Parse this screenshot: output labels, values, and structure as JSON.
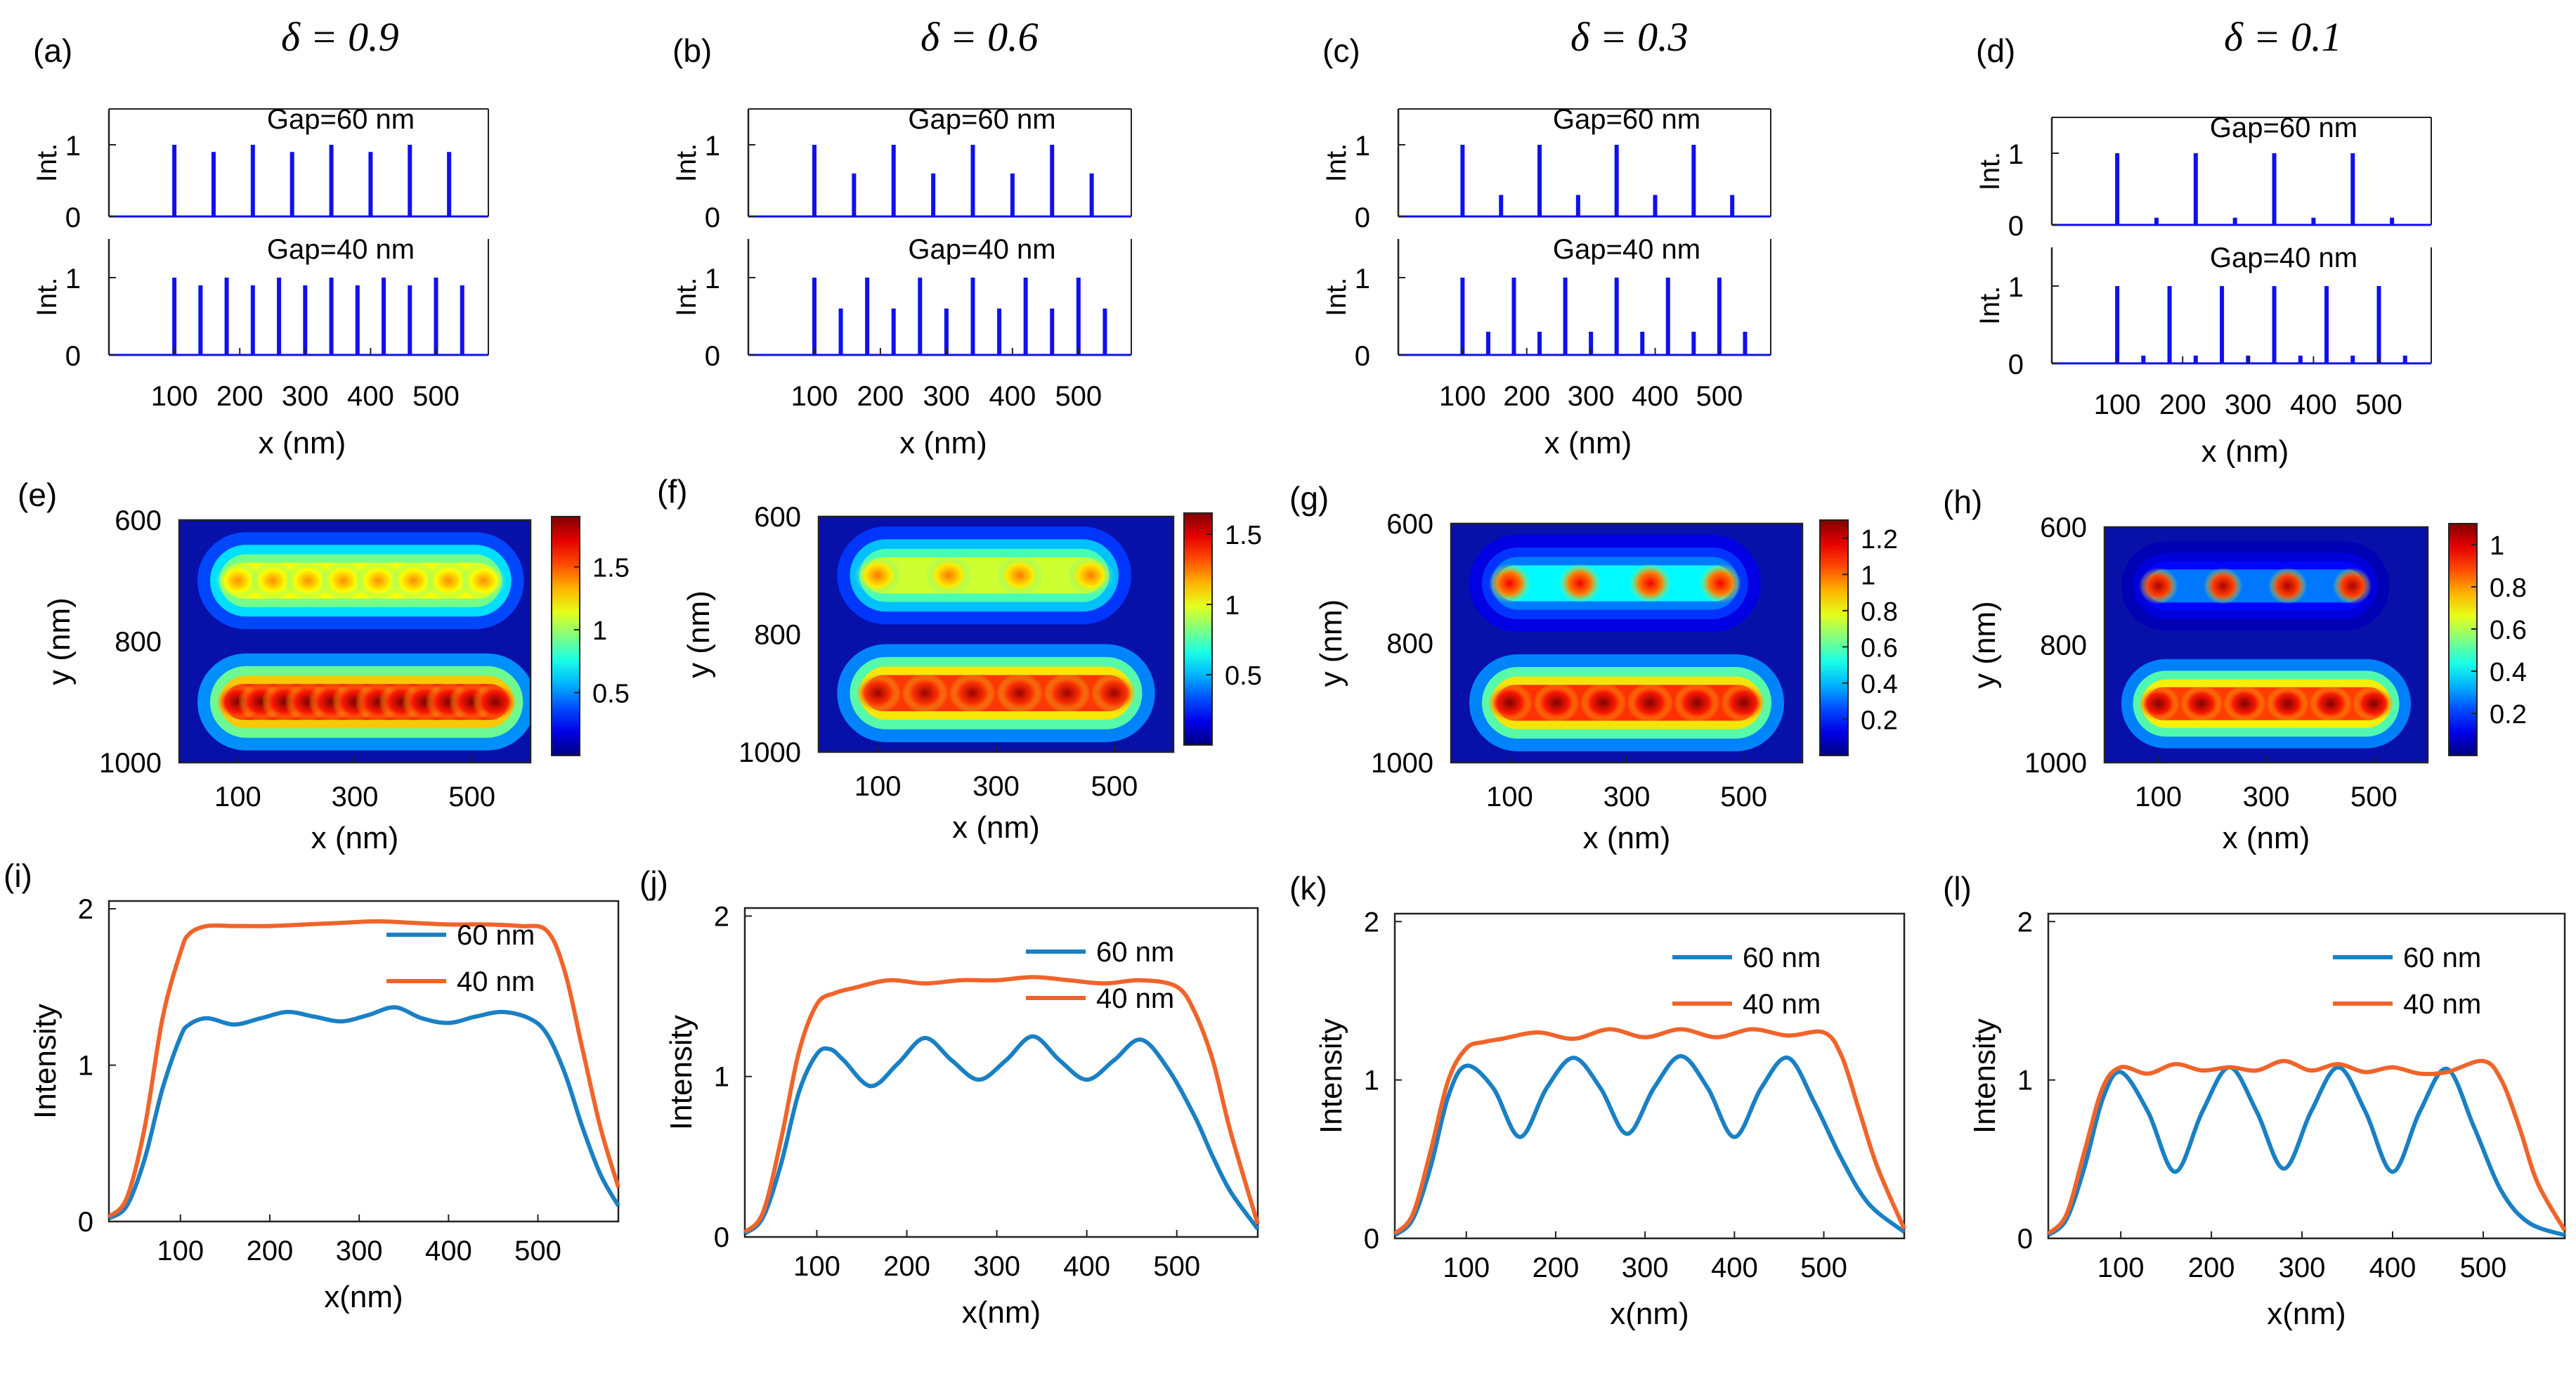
{
  "colors": {
    "stick": "#1010ee",
    "series60": "#1a80c4",
    "series40": "#f0642a",
    "axis": "#222222"
  },
  "delta_symbol": "δ",
  "chart_data": [
    {
      "panel": "a",
      "type": "bar",
      "title": "δ = 0.9",
      "label": "(a)",
      "xlabel": "x (nm)",
      "ylabel": "Int.",
      "xlim": [
        0,
        580
      ],
      "ylim": [
        0,
        1.5
      ],
      "xticks": [
        100,
        200,
        300,
        400,
        500
      ],
      "yticks": [
        0,
        1
      ],
      "subplots": [
        {
          "annotation": "Gap=60 nm",
          "x": [
            100,
            160,
            220,
            280,
            340,
            400,
            460,
            520
          ],
          "values": [
            1,
            0.9,
            1,
            0.9,
            1,
            0.9,
            1,
            0.9
          ]
        },
        {
          "annotation": "Gap=40 nm",
          "x": [
            100,
            140,
            180,
            220,
            260,
            300,
            340,
            380,
            420,
            460,
            500,
            540
          ],
          "values": [
            1,
            0.9,
            1,
            0.9,
            1,
            0.9,
            1,
            0.9,
            1,
            0.9,
            1,
            0.9
          ]
        }
      ]
    },
    {
      "panel": "b",
      "type": "bar",
      "title": "δ = 0.6",
      "label": "(b)",
      "xlabel": "x (nm)",
      "ylabel": "Int.",
      "xlim": [
        0,
        580
      ],
      "ylim": [
        0,
        1.5
      ],
      "xticks": [
        100,
        200,
        300,
        400,
        500
      ],
      "yticks": [
        0,
        1
      ],
      "subplots": [
        {
          "annotation": "Gap=60 nm",
          "x": [
            100,
            160,
            220,
            280,
            340,
            400,
            460,
            520
          ],
          "values": [
            1,
            0.6,
            1,
            0.6,
            1,
            0.6,
            1,
            0.6
          ]
        },
        {
          "annotation": "Gap=40 nm",
          "x": [
            100,
            140,
            180,
            220,
            260,
            300,
            340,
            380,
            420,
            460,
            500,
            540
          ],
          "values": [
            1,
            0.6,
            1,
            0.6,
            1,
            0.6,
            1,
            0.6,
            1,
            0.6,
            1,
            0.6
          ]
        }
      ]
    },
    {
      "panel": "c",
      "type": "bar",
      "title": "δ = 0.3",
      "label": "(c)",
      "xlabel": "x (nm)",
      "ylabel": "Int.",
      "xlim": [
        0,
        580
      ],
      "ylim": [
        0,
        1.5
      ],
      "xticks": [
        100,
        200,
        300,
        400,
        500
      ],
      "yticks": [
        0,
        1
      ],
      "subplots": [
        {
          "annotation": "Gap=60 nm",
          "x": [
            100,
            160,
            220,
            280,
            340,
            400,
            460,
            520
          ],
          "values": [
            1,
            0.3,
            1,
            0.3,
            1,
            0.3,
            1,
            0.3
          ]
        },
        {
          "annotation": "Gap=40 nm",
          "x": [
            100,
            140,
            180,
            220,
            260,
            300,
            340,
            380,
            420,
            460,
            500,
            540
          ],
          "values": [
            1,
            0.3,
            1,
            0.3,
            1,
            0.3,
            1,
            0.3,
            1,
            0.3,
            1,
            0.3
          ]
        }
      ]
    },
    {
      "panel": "d",
      "type": "bar",
      "title": "δ = 0.1",
      "label": "(d)",
      "xlabel": "x (nm)",
      "ylabel": "Int.",
      "xlim": [
        0,
        580
      ],
      "ylim": [
        0,
        1.5
      ],
      "xticks": [
        100,
        200,
        300,
        400,
        500
      ],
      "yticks": [
        0,
        1
      ],
      "subplots": [
        {
          "annotation": "Gap=60 nm",
          "x": [
            100,
            160,
            220,
            280,
            340,
            400,
            460,
            520
          ],
          "values": [
            1,
            0.1,
            1,
            0.1,
            1,
            0.1,
            1,
            0.1
          ]
        },
        {
          "annotation": "Gap=40 nm",
          "x": [
            100,
            140,
            180,
            220,
            260,
            300,
            340,
            380,
            420,
            460,
            500,
            540
          ],
          "values": [
            1,
            0.1,
            1,
            0.1,
            1,
            0.1,
            1,
            0.1,
            1,
            0.1,
            1,
            0.1
          ]
        }
      ]
    },
    {
      "panel": "e",
      "type": "heatmap",
      "label": "(e)",
      "xlabel": "x (nm)",
      "ylabel": "y (nm)",
      "xlim": [
        0,
        600
      ],
      "ylim": [
        600,
        1000
      ],
      "xticks": [
        100,
        300,
        500
      ],
      "yticks": [
        600,
        800,
        1000
      ],
      "colorbar_ticks": [
        0.5,
        1,
        1.5
      ],
      "colorbar_ticklabels": [
        "0.5",
        "1",
        "1.5"
      ],
      "colorbar_range": [
        0,
        1.9
      ],
      "rows": [
        {
          "y": 700,
          "peaks": [
            100,
            160,
            220,
            280,
            340,
            400,
            460,
            520
          ],
          "intensity": 1.4,
          "modulation": 0.05
        },
        {
          "y": 900,
          "peaks": [
            100,
            140,
            180,
            220,
            260,
            300,
            340,
            380,
            420,
            460,
            500,
            540
          ],
          "intensity": 1.9,
          "modulation": 0.03
        }
      ]
    },
    {
      "panel": "f",
      "type": "heatmap",
      "label": "(f)",
      "xlabel": "x (nm)",
      "ylabel": "y (nm)",
      "xlim": [
        0,
        600
      ],
      "ylim": [
        600,
        1000
      ],
      "xticks": [
        100,
        300,
        500
      ],
      "yticks": [
        600,
        800,
        1000
      ],
      "colorbar_ticks": [
        0.5,
        1,
        1.5
      ],
      "colorbar_ticklabels": [
        "0.5",
        "1",
        "1.5"
      ],
      "colorbar_range": [
        0,
        1.65
      ],
      "rows": [
        {
          "y": 700,
          "peaks": [
            100,
            220,
            340,
            460
          ],
          "intensity": 1.25,
          "modulation": 0.18
        },
        {
          "y": 900,
          "peaks": [
            100,
            180,
            260,
            340,
            420,
            500
          ],
          "intensity": 1.6,
          "modulation": 0.05
        }
      ]
    },
    {
      "panel": "g",
      "type": "heatmap",
      "label": "(g)",
      "xlabel": "x (nm)",
      "ylabel": "y (nm)",
      "xlim": [
        0,
        600
      ],
      "ylim": [
        600,
        1000
      ],
      "xticks": [
        100,
        300,
        500
      ],
      "yticks": [
        600,
        800,
        1000
      ],
      "colorbar_ticks": [
        0.2,
        0.4,
        0.6,
        0.8,
        1,
        1.2
      ],
      "colorbar_ticklabels": [
        "0.2",
        "0.4",
        "0.6",
        "0.8",
        "1",
        "1.2"
      ],
      "colorbar_range": [
        0,
        1.3
      ],
      "rows": [
        {
          "y": 700,
          "peaks": [
            100,
            220,
            340,
            460
          ],
          "intensity": 1.15,
          "modulation": 0.7
        },
        {
          "y": 900,
          "peaks": [
            100,
            180,
            260,
            340,
            420,
            500
          ],
          "intensity": 1.3,
          "modulation": 0.08
        }
      ]
    },
    {
      "panel": "h",
      "type": "heatmap",
      "label": "(h)",
      "xlabel": "x (nm)",
      "ylabel": "y (nm)",
      "xlim": [
        0,
        600
      ],
      "ylim": [
        600,
        1000
      ],
      "xticks": [
        100,
        300,
        500
      ],
      "yticks": [
        600,
        800,
        1000
      ],
      "colorbar_ticks": [
        0.2,
        0.4,
        0.6,
        0.8,
        1
      ],
      "colorbar_ticklabels": [
        "0.2",
        "0.4",
        "0.6",
        "0.8",
        "1"
      ],
      "colorbar_range": [
        0,
        1.1
      ],
      "rows": [
        {
          "y": 700,
          "peaks": [
            100,
            220,
            340,
            460
          ],
          "intensity": 1.05,
          "modulation": 0.95
        },
        {
          "y": 900,
          "peaks": [
            100,
            180,
            260,
            340,
            420,
            500
          ],
          "intensity": 1.1,
          "modulation": 0.1
        }
      ]
    },
    {
      "panel": "i",
      "type": "line",
      "label": "(i)",
      "xlabel": "x(nm)",
      "ylabel": "Intensity",
      "xlim": [
        20,
        590
      ],
      "ylim": [
        0,
        2.05
      ],
      "xticks": [
        100,
        200,
        300,
        400,
        500
      ],
      "yticks": [
        0,
        1,
        2
      ],
      "legend_position": "top-right",
      "series": [
        {
          "name": "60 nm",
          "x": [
            20,
            40,
            60,
            80,
            100,
            110,
            130,
            160,
            190,
            220,
            250,
            280,
            310,
            340,
            370,
            400,
            430,
            460,
            490,
            510,
            530,
            550,
            570,
            590
          ],
          "values": [
            0.02,
            0.1,
            0.4,
            0.85,
            1.18,
            1.26,
            1.3,
            1.26,
            1.3,
            1.34,
            1.31,
            1.28,
            1.32,
            1.37,
            1.3,
            1.27,
            1.31,
            1.34,
            1.3,
            1.2,
            0.95,
            0.6,
            0.3,
            0.1
          ]
        },
        {
          "name": "40 nm",
          "x": [
            20,
            40,
            60,
            80,
            100,
            110,
            130,
            160,
            200,
            240,
            280,
            320,
            360,
            400,
            440,
            480,
            510,
            530,
            550,
            570,
            590
          ],
          "values": [
            0.03,
            0.15,
            0.6,
            1.3,
            1.72,
            1.84,
            1.89,
            1.89,
            1.89,
            1.9,
            1.91,
            1.92,
            1.91,
            1.9,
            1.9,
            1.89,
            1.86,
            1.6,
            1.1,
            0.6,
            0.22
          ]
        }
      ]
    },
    {
      "panel": "j",
      "type": "line",
      "label": "(j)",
      "xlabel": "x(nm)",
      "ylabel": "Intensity",
      "xlim": [
        20,
        590
      ],
      "ylim": [
        0,
        2.05
      ],
      "xticks": [
        100,
        200,
        300,
        400,
        500
      ],
      "yticks": [
        0,
        1,
        2
      ],
      "legend_position": "top-right",
      "series": [
        {
          "name": "60 nm",
          "x": [
            20,
            40,
            60,
            80,
            100,
            115,
            130,
            160,
            190,
            220,
            250,
            280,
            310,
            340,
            370,
            400,
            430,
            460,
            490,
            520,
            540,
            560,
            590
          ],
          "values": [
            0.02,
            0.12,
            0.45,
            0.9,
            1.14,
            1.17,
            1.1,
            0.94,
            1.08,
            1.24,
            1.1,
            0.98,
            1.1,
            1.25,
            1.1,
            0.98,
            1.1,
            1.23,
            1.05,
            0.75,
            0.5,
            0.28,
            0.05
          ]
        },
        {
          "name": "40 nm",
          "x": [
            20,
            40,
            60,
            80,
            100,
            120,
            140,
            180,
            220,
            260,
            300,
            340,
            380,
            420,
            460,
            500,
            520,
            540,
            560,
            590
          ],
          "values": [
            0.03,
            0.15,
            0.6,
            1.15,
            1.45,
            1.52,
            1.55,
            1.6,
            1.58,
            1.6,
            1.6,
            1.62,
            1.6,
            1.58,
            1.6,
            1.56,
            1.4,
            1.1,
            0.65,
            0.08
          ]
        }
      ]
    },
    {
      "panel": "k",
      "type": "line",
      "label": "(k)",
      "xlabel": "x(nm)",
      "ylabel": "Intensity",
      "xlim": [
        20,
        590
      ],
      "ylim": [
        0,
        2.05
      ],
      "xticks": [
        100,
        200,
        300,
        400,
        500
      ],
      "yticks": [
        0,
        1,
        2
      ],
      "legend_position": "top-right",
      "series": [
        {
          "name": "60 nm",
          "x": [
            20,
            40,
            60,
            80,
            100,
            130,
            160,
            190,
            220,
            250,
            280,
            310,
            340,
            370,
            400,
            430,
            460,
            490,
            520,
            550,
            590
          ],
          "values": [
            0.02,
            0.12,
            0.45,
            0.9,
            1.09,
            0.95,
            0.64,
            0.95,
            1.14,
            0.95,
            0.66,
            0.95,
            1.15,
            0.95,
            0.64,
            0.95,
            1.14,
            0.85,
            0.5,
            0.22,
            0.04
          ]
        },
        {
          "name": "40 nm",
          "x": [
            20,
            40,
            60,
            80,
            100,
            120,
            140,
            180,
            220,
            260,
            300,
            340,
            380,
            420,
            460,
            500,
            520,
            540,
            560,
            590
          ],
          "values": [
            0.03,
            0.15,
            0.55,
            1.0,
            1.2,
            1.24,
            1.26,
            1.3,
            1.26,
            1.32,
            1.27,
            1.32,
            1.27,
            1.32,
            1.28,
            1.3,
            1.15,
            0.8,
            0.45,
            0.06
          ]
        }
      ]
    },
    {
      "panel": "l",
      "type": "line",
      "label": "(l)",
      "xlabel": "x(nm)",
      "ylabel": "Intensity",
      "xlim": [
        20,
        590
      ],
      "ylim": [
        0,
        2.05
      ],
      "xticks": [
        100,
        200,
        300,
        400,
        500
      ],
      "yticks": [
        0,
        1,
        2
      ],
      "legend_position": "top-right",
      "series": [
        {
          "name": "60 nm",
          "x": [
            20,
            40,
            60,
            80,
            100,
            130,
            160,
            190,
            220,
            250,
            280,
            310,
            340,
            370,
            400,
            430,
            460,
            490,
            520,
            550,
            590
          ],
          "values": [
            0.02,
            0.12,
            0.45,
            0.88,
            1.05,
            0.8,
            0.42,
            0.8,
            1.08,
            0.8,
            0.44,
            0.8,
            1.08,
            0.8,
            0.42,
            0.8,
            1.07,
            0.7,
            0.3,
            0.1,
            0.02
          ]
        },
        {
          "name": "40 nm",
          "x": [
            20,
            40,
            60,
            80,
            100,
            130,
            160,
            190,
            220,
            250,
            280,
            310,
            340,
            370,
            400,
            430,
            460,
            500,
            520,
            540,
            560,
            590
          ],
          "values": [
            0.03,
            0.15,
            0.55,
            0.95,
            1.08,
            1.04,
            1.1,
            1.06,
            1.08,
            1.06,
            1.12,
            1.06,
            1.1,
            1.05,
            1.08,
            1.04,
            1.05,
            1.12,
            1.0,
            0.7,
            0.35,
            0.05
          ]
        }
      ]
    }
  ]
}
